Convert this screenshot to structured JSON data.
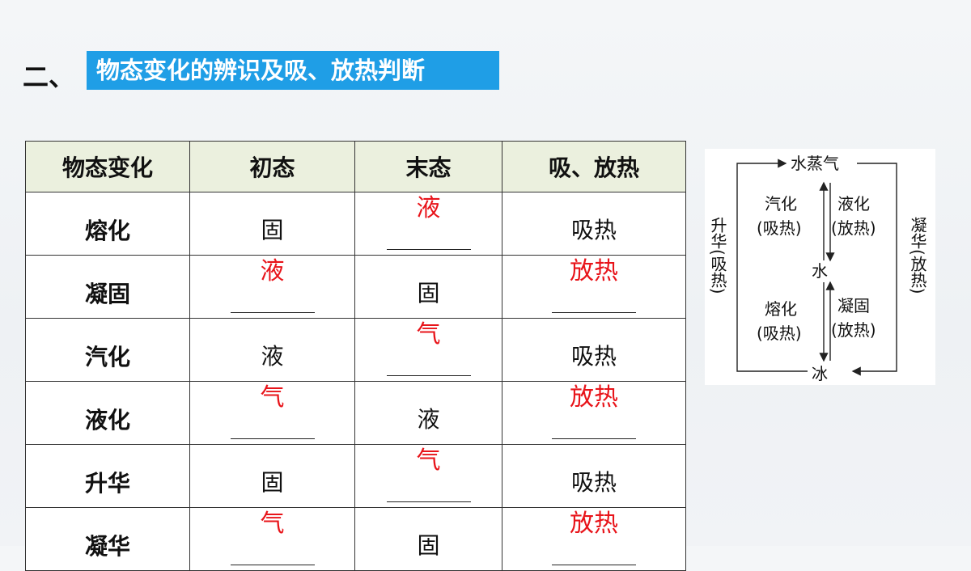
{
  "heading": {
    "prefix": "二、",
    "title": "物态变化的辨识及吸、放热判断"
  },
  "table": {
    "headers": [
      "物态变化",
      "初态",
      "末态",
      "吸、放热"
    ],
    "rows": [
      {
        "change": "熔化",
        "initial": "固",
        "initial_answer": "",
        "final": "",
        "final_answer": "液",
        "heat": "吸热",
        "heat_answer": ""
      },
      {
        "change": "凝固",
        "initial": "",
        "initial_answer": "液",
        "final": "固",
        "final_answer": "",
        "heat": "",
        "heat_answer": "放热"
      },
      {
        "change": "汽化",
        "initial": "液",
        "initial_answer": "",
        "final": "",
        "final_answer": "气",
        "heat": "吸热",
        "heat_answer": ""
      },
      {
        "change": "液化",
        "initial": "",
        "initial_answer": "气",
        "final": "液",
        "final_answer": "",
        "heat": "",
        "heat_answer": "放热"
      },
      {
        "change": "升华",
        "initial": "固",
        "initial_answer": "",
        "final": "",
        "final_answer": "气",
        "heat": "吸热",
        "heat_answer": ""
      },
      {
        "change": "凝华",
        "initial": "",
        "initial_answer": "气",
        "final": "固",
        "final_answer": "",
        "heat": "",
        "heat_answer": "放热"
      }
    ]
  },
  "diagram": {
    "vapor": "水蒸气",
    "water": "水",
    "ice": "冰",
    "vaporize_line1": "汽化",
    "vaporize_line2": "(吸热)",
    "liquefy_line1": "液化",
    "liquefy_line2": "(放热)",
    "melt_line1": "熔化",
    "melt_line2": "(吸热)",
    "solidify_line1": "凝固",
    "solidify_line2": "(放热)",
    "sublimation": "升华(吸热)",
    "deposition": "凝华(放热)"
  },
  "colors": {
    "title_bg": "#1f9ee6",
    "header_bg": "#ebf0de",
    "answer": "#e8141a"
  }
}
